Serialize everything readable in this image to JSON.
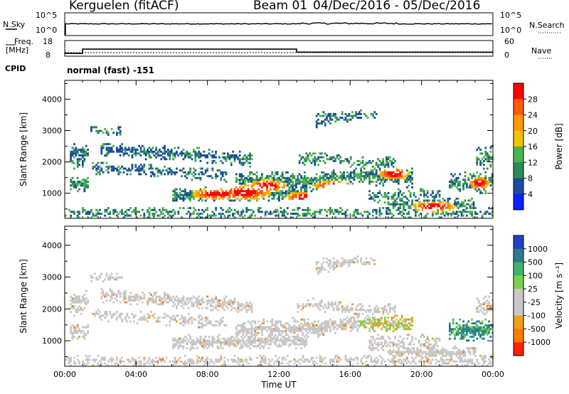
{
  "header": {
    "title": "Kerguelen (fitACF)",
    "beam": "Beam 01",
    "dates": "04/Dec/2016 - 05/Dec/2016"
  },
  "top_panels": {
    "nsky_label": "N.Sky",
    "nsky_ticks": [
      "10^5",
      "10^0"
    ],
    "nsearch_label": "N.Search",
    "nsearch_ticks": [
      "10^5",
      "10^0"
    ],
    "freq_label_1": "Freq.",
    "freq_label_2": "[MHz]",
    "freq_ticks": [
      "18",
      "8"
    ],
    "nave_label": "Nave",
    "nave_ticks": [
      "60",
      "0"
    ],
    "cpid_label": "CPID",
    "cpid_text": "normal (fast) -151",
    "freq_steps": [
      {
        "from_h": 0.0,
        "to_h": 1.0,
        "mhz": 9.8
      },
      {
        "from_h": 1.0,
        "to_h": 13.0,
        "mhz": 12.5
      },
      {
        "from_h": 13.0,
        "to_h": 24.0,
        "mhz": 10.6
      }
    ],
    "nave_level": 13.5
  },
  "chart_data": [
    {
      "type": "heatmap",
      "panel": "power",
      "ylabel": "Slant Range [km]",
      "xlabel": "",
      "yticks": [
        "1000",
        "2000",
        "3000",
        "4000"
      ],
      "ylim": [
        200,
        4600
      ],
      "xlim_hours": [
        0,
        24
      ],
      "colorbar_label": "Power [dB]",
      "colorbar_ticks": [
        "28",
        "24",
        "20",
        "16",
        "12",
        "8",
        "4"
      ],
      "colorbar_colors": [
        "#ff0000",
        "#ff5a00",
        "#ff9900",
        "#f2c400",
        "#4db34d",
        "#2e8b57",
        "#1a4aa0",
        "#0b1fff"
      ]
    },
    {
      "type": "heatmap",
      "panel": "velocity",
      "ylabel": "Slant Range [km]",
      "xlabel": "Time UT",
      "yticks": [
        "1000",
        "2000",
        "3000",
        "4000"
      ],
      "ylim": [
        200,
        4600
      ],
      "xticks": [
        "00:00",
        "04:00",
        "08:00",
        "12:00",
        "16:00",
        "20:00",
        "00:00"
      ],
      "xlim_hours": [
        0,
        24
      ],
      "colorbar_label": "Velocity [m s⁻¹]",
      "colorbar_ticks": [
        "1000",
        "500",
        "100",
        "25",
        "-25",
        "-100",
        "-500",
        "-1000"
      ],
      "colorbar_colors": [
        "#2040c0",
        "#2e7a8a",
        "#3cb371",
        "#7ad24a",
        "#c8c8c8",
        "#c8c8c8",
        "#f0a020",
        "#ff7a00",
        "#ff2000"
      ]
    }
  ]
}
